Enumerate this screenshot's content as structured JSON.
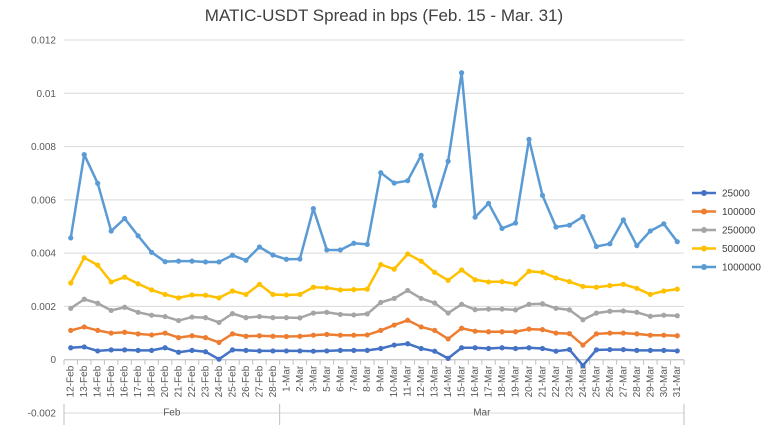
{
  "chart_data": {
    "type": "line",
    "title": "MATIC-USDT Spread in bps (Feb. 15 - Mar. 31)",
    "xlabel": "",
    "ylabel": "",
    "ylim": [
      -0.002,
      0.012
    ],
    "yticks": [
      -0.002,
      0,
      0.002,
      0.004,
      0.006,
      0.008,
      0.01,
      0.012
    ],
    "ytick_labels": [
      "-0.002",
      "0",
      "0.002",
      "0.004",
      "0.006",
      "0.008",
      "0.01",
      "0.012"
    ],
    "grid": true,
    "legend_position": "right",
    "categories": [
      "12-Feb",
      "13-Feb",
      "14-Feb",
      "15-Feb",
      "16-Feb",
      "17-Feb",
      "18-Feb",
      "20-Feb",
      "21-Feb",
      "22-Feb",
      "23-Feb",
      "24-Feb",
      "25-Feb",
      "26-Feb",
      "27-Feb",
      "28-Feb",
      "1-Mar",
      "2-Mar",
      "3-Mar",
      "5-Mar",
      "6-Mar",
      "7-Mar",
      "8-Mar",
      "9-Mar",
      "10-Mar",
      "11-Mar",
      "12-Mar",
      "13-Mar",
      "14-Mar",
      "15-Mar",
      "16-Mar",
      "17-Mar",
      "18-Mar",
      "19-Mar",
      "20-Mar",
      "21-Mar",
      "22-Mar",
      "23-Mar",
      "24-Mar",
      "25-Mar",
      "26-Mar",
      "27-Mar",
      "28-Mar",
      "29-Mar",
      "30-Mar",
      "31-Mar"
    ],
    "groups": [
      {
        "label": "Feb",
        "start": 0,
        "end": 15
      },
      {
        "label": "Mar",
        "start": 16,
        "end": 45
      }
    ],
    "series": [
      {
        "name": "25000",
        "color": "#4472C4",
        "values": [
          0.00045,
          0.00048,
          0.00033,
          0.00037,
          0.00037,
          0.00035,
          0.00035,
          0.00045,
          0.00028,
          0.00035,
          0.0003,
          2e-05,
          0.00037,
          0.00035,
          0.00033,
          0.00033,
          0.00033,
          0.00033,
          0.00032,
          0.00033,
          0.00035,
          0.00035,
          0.00035,
          0.00042,
          0.00055,
          0.0006,
          0.00042,
          0.00032,
          5e-05,
          0.00045,
          0.00045,
          0.00042,
          0.00045,
          0.00042,
          0.00045,
          0.00042,
          0.00032,
          0.00038,
          -0.00022,
          0.00037,
          0.00038,
          0.00038,
          0.00035,
          0.00035,
          0.00035,
          0.00033
        ]
      },
      {
        "name": "100000",
        "color": "#ED7D31",
        "values": [
          0.0011,
          0.00123,
          0.0011,
          0.001,
          0.00103,
          0.00097,
          0.00093,
          0.001,
          0.00083,
          0.0009,
          0.00083,
          0.00065,
          0.00097,
          0.00088,
          0.0009,
          0.00088,
          0.00087,
          0.00088,
          0.00092,
          0.00095,
          0.00092,
          0.00092,
          0.00093,
          0.0011,
          0.0013,
          0.00148,
          0.00123,
          0.0011,
          0.00078,
          0.00118,
          0.00107,
          0.00105,
          0.00105,
          0.00105,
          0.00115,
          0.00113,
          0.001,
          0.00098,
          0.00055,
          0.00097,
          0.001,
          0.001,
          0.00097,
          0.00092,
          0.00092,
          0.0009
        ]
      },
      {
        "name": "250000",
        "color": "#A5A5A5",
        "values": [
          0.00193,
          0.00227,
          0.00212,
          0.00185,
          0.00197,
          0.00178,
          0.00167,
          0.00162,
          0.00147,
          0.0016,
          0.00158,
          0.0014,
          0.00173,
          0.00158,
          0.00162,
          0.00158,
          0.00158,
          0.00157,
          0.00175,
          0.00178,
          0.0017,
          0.00168,
          0.00172,
          0.00215,
          0.0023,
          0.0026,
          0.0023,
          0.00213,
          0.00175,
          0.00208,
          0.00188,
          0.0019,
          0.0019,
          0.00187,
          0.00208,
          0.0021,
          0.00193,
          0.00187,
          0.0015,
          0.00175,
          0.00182,
          0.00183,
          0.00178,
          0.00163,
          0.00167,
          0.00165
        ]
      },
      {
        "name": "500000",
        "color": "#FFC000",
        "values": [
          0.00288,
          0.00383,
          0.00355,
          0.00292,
          0.0031,
          0.00285,
          0.00262,
          0.00245,
          0.00232,
          0.00243,
          0.00242,
          0.00232,
          0.00258,
          0.00245,
          0.00283,
          0.00245,
          0.00243,
          0.00245,
          0.00272,
          0.0027,
          0.00262,
          0.00263,
          0.00265,
          0.00357,
          0.0034,
          0.00397,
          0.0037,
          0.00328,
          0.00298,
          0.00337,
          0.003,
          0.00292,
          0.00293,
          0.00285,
          0.00332,
          0.00328,
          0.00307,
          0.00293,
          0.00275,
          0.00272,
          0.00278,
          0.00283,
          0.00268,
          0.00245,
          0.00258,
          0.00265
        ]
      },
      {
        "name": "1000000",
        "color": "#5B9BD5",
        "values": [
          0.00457,
          0.0077,
          0.00662,
          0.00483,
          0.0053,
          0.00465,
          0.00403,
          0.00368,
          0.0037,
          0.0037,
          0.00367,
          0.00367,
          0.00392,
          0.00373,
          0.00423,
          0.00393,
          0.00377,
          0.00378,
          0.00567,
          0.00412,
          0.00412,
          0.00437,
          0.00433,
          0.00702,
          0.00663,
          0.00672,
          0.00767,
          0.00578,
          0.00745,
          0.01077,
          0.00535,
          0.00587,
          0.00493,
          0.00513,
          0.00827,
          0.00617,
          0.00498,
          0.00505,
          0.00537,
          0.00425,
          0.00435,
          0.00525,
          0.00428,
          0.00483,
          0.0051,
          0.00443
        ]
      }
    ]
  }
}
